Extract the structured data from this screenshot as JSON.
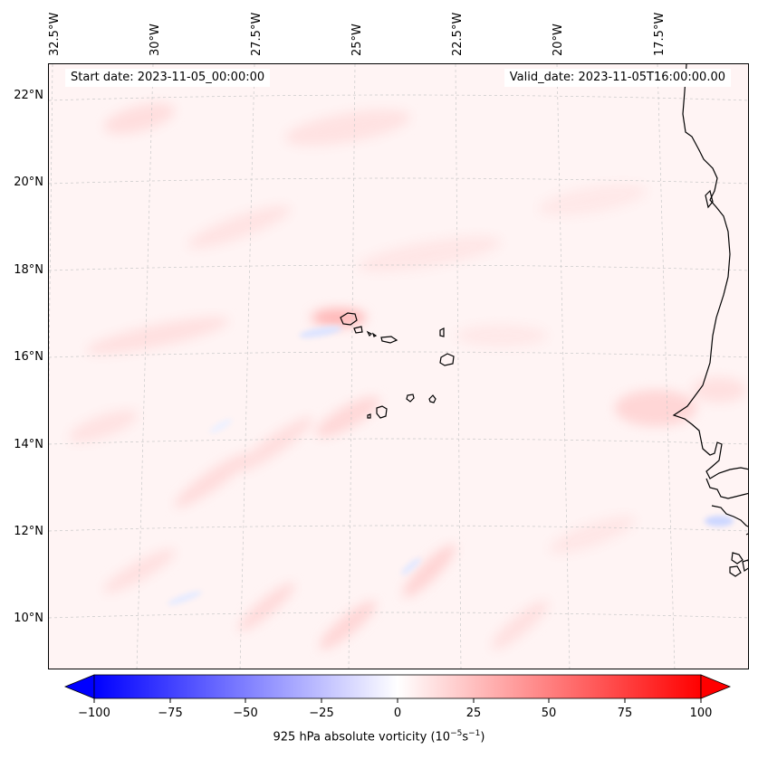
{
  "header": {
    "start_date": "Start date: 2023-11-05_00:00:00",
    "valid_date": "Valid_date: 2023-11-05T16:00:00.00"
  },
  "axes": {
    "longitude_labels": [
      "32.5°W",
      "30°W",
      "27.5°W",
      "25°W",
      "22.5°W",
      "20°W",
      "17.5°W"
    ],
    "latitude_labels": [
      "22°N",
      "20°N",
      "18°N",
      "16°N",
      "14°N",
      "12°N",
      "10°N"
    ]
  },
  "colorbar": {
    "ticks": [
      "−100",
      "−75",
      "−50",
      "−25",
      "0",
      "25",
      "50",
      "75",
      "100"
    ],
    "label_prefix": "925 hPa absolute vorticity (10",
    "label_exp1": "−5",
    "label_mid": "s",
    "label_exp2": "−1",
    "label_suffix": ")",
    "min_color": "#0000ff",
    "mid_color": "#ffffff",
    "max_color": "#ff0000"
  },
  "map": {
    "ocean_tint": "#fff3f3",
    "coast_color": "#000000",
    "grid_color": "#c8c8c8"
  }
}
